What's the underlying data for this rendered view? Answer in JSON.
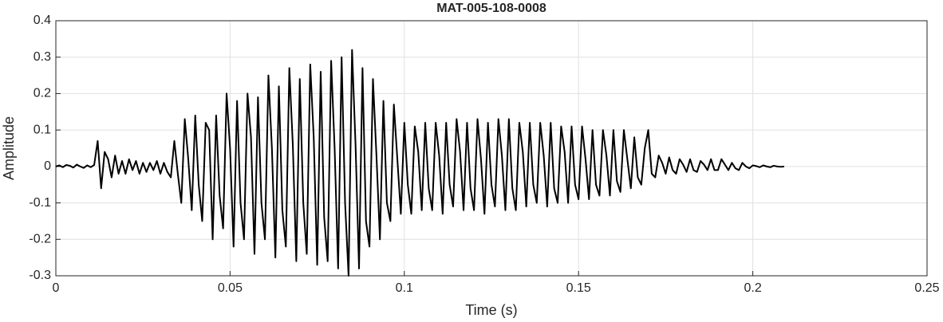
{
  "chart_data": {
    "type": "line",
    "title": "MAT-005-108-0008",
    "xlabel": "Time (s)",
    "ylabel": "Amplitude",
    "color": "#000000",
    "grid": true,
    "xlim": [
      0,
      0.25
    ],
    "xticks": [
      0,
      0.05,
      0.1,
      0.15,
      0.2,
      0.25
    ],
    "ylim": [
      -0.3,
      0.4
    ],
    "yticks": [
      -0.3,
      -0.2,
      -0.1,
      0,
      0.1,
      0.2,
      0.3,
      0.4
    ],
    "x": [
      0,
      0.001,
      0.002,
      0.003,
      0.004,
      0.005,
      0.006,
      0.007,
      0.008,
      0.009,
      0.01,
      0.011,
      0.012,
      0.013,
      0.014,
      0.015,
      0.016,
      0.017,
      0.018,
      0.019,
      0.02,
      0.021,
      0.022,
      0.023,
      0.024,
      0.025,
      0.026,
      0.027,
      0.028,
      0.029,
      0.03,
      0.031,
      0.032,
      0.033,
      0.034,
      0.035,
      0.036,
      0.037,
      0.038,
      0.039,
      0.04,
      0.041,
      0.042,
      0.043,
      0.044,
      0.045,
      0.046,
      0.047,
      0.048,
      0.049,
      0.05,
      0.051,
      0.052,
      0.053,
      0.054,
      0.055,
      0.056,
      0.057,
      0.058,
      0.059,
      0.06,
      0.061,
      0.062,
      0.063,
      0.064,
      0.065,
      0.066,
      0.067,
      0.068,
      0.069,
      0.07,
      0.071,
      0.072,
      0.073,
      0.074,
      0.075,
      0.076,
      0.077,
      0.078,
      0.079,
      0.08,
      0.081,
      0.082,
      0.083,
      0.084,
      0.085,
      0.086,
      0.087,
      0.088,
      0.089,
      0.09,
      0.091,
      0.092,
      0.093,
      0.094,
      0.095,
      0.096,
      0.097,
      0.098,
      0.099,
      0.1,
      0.101,
      0.102,
      0.103,
      0.104,
      0.105,
      0.106,
      0.107,
      0.108,
      0.109,
      0.11,
      0.111,
      0.112,
      0.113,
      0.114,
      0.115,
      0.116,
      0.117,
      0.118,
      0.119,
      0.12,
      0.121,
      0.122,
      0.123,
      0.124,
      0.125,
      0.126,
      0.127,
      0.128,
      0.129,
      0.13,
      0.131,
      0.132,
      0.133,
      0.134,
      0.135,
      0.136,
      0.137,
      0.138,
      0.139,
      0.14,
      0.141,
      0.142,
      0.143,
      0.144,
      0.145,
      0.146,
      0.147,
      0.148,
      0.149,
      0.15,
      0.151,
      0.152,
      0.153,
      0.154,
      0.155,
      0.156,
      0.157,
      0.158,
      0.159,
      0.16,
      0.161,
      0.162,
      0.163,
      0.164,
      0.165,
      0.166,
      0.167,
      0.168,
      0.169,
      0.17,
      0.171,
      0.172,
      0.173,
      0.174,
      0.175,
      0.176,
      0.177,
      0.178,
      0.179,
      0.18,
      0.181,
      0.182,
      0.183,
      0.184,
      0.185,
      0.186,
      0.187,
      0.188,
      0.189,
      0.19,
      0.191,
      0.192,
      0.193,
      0.194,
      0.195,
      0.196,
      0.197,
      0.198,
      0.199,
      0.2,
      0.201,
      0.202,
      0.203,
      0.204,
      0.205,
      0.206,
      0.207,
      0.208,
      0.209
    ],
    "values": [
      0,
      0.003,
      -0.002,
      0.004,
      0.002,
      -0.003,
      0.005,
      0,
      -0.004,
      0.003,
      -0.002,
      0.004,
      0.07,
      -0.06,
      0.04,
      0.02,
      -0.03,
      0.03,
      -0.02,
      0.015,
      -0.02,
      0.02,
      -0.01,
      0.015,
      -0.02,
      0.01,
      -0.015,
      0.01,
      -0.01,
      0.015,
      -0.02,
      0.01,
      -0.015,
      -0.03,
      0.07,
      -0.02,
      -0.1,
      0.13,
      0.02,
      -0.12,
      0.14,
      -0.05,
      -0.15,
      0.12,
      0.1,
      -0.2,
      0.14,
      -0.08,
      -0.17,
      0.2,
      0.05,
      -0.22,
      0.18,
      -0.1,
      -0.2,
      0.2,
      0.08,
      -0.24,
      0.19,
      -0.1,
      -0.2,
      0.25,
      0.05,
      -0.25,
      0.22,
      -0.12,
      -0.22,
      0.27,
      0.06,
      -0.26,
      0.24,
      -0.1,
      -0.24,
      0.28,
      0.08,
      -0.27,
      0.26,
      -0.14,
      -0.26,
      0.29,
      0.05,
      -0.28,
      0.3,
      -0.1,
      -0.3,
      0.32,
      0.06,
      -0.28,
      0.27,
      -0.15,
      -0.22,
      0.24,
      0.03,
      -0.2,
      0.18,
      -0.1,
      -0.15,
      0.17,
      0.02,
      -0.13,
      0.12,
      -0.05,
      -0.13,
      0.11,
      0.04,
      -0.12,
      0.12,
      -0.06,
      -0.12,
      0.12,
      0.03,
      -0.13,
      0.12,
      -0.05,
      -0.11,
      0.13,
      0.04,
      -0.12,
      0.12,
      -0.06,
      -0.12,
      0.13,
      0.02,
      -0.13,
      0.12,
      -0.05,
      -0.11,
      0.13,
      0.03,
      -0.12,
      0.13,
      -0.06,
      -0.12,
      0.12,
      0.04,
      -0.11,
      0.12,
      -0.05,
      -0.1,
      0.12,
      0.03,
      -0.11,
      0.12,
      -0.06,
      -0.1,
      0.11,
      0.04,
      -0.1,
      0.11,
      -0.05,
      -0.09,
      0.11,
      0.02,
      -0.09,
      0.1,
      -0.05,
      -0.08,
      0.1,
      0.03,
      -0.08,
      0.1,
      -0.04,
      -0.07,
      0.1,
      0.02,
      -0.06,
      0.08,
      -0.03,
      -0.05,
      0.05,
      0.1,
      -0.02,
      -0.03,
      0.03,
      0.01,
      -0.02,
      0.025,
      -0.01,
      -0.02,
      0.02,
      0.005,
      -0.015,
      0.02,
      -0.01,
      -0.015,
      0.015,
      0.005,
      -0.01,
      0.02,
      -0.01,
      -0.01,
      0.02,
      0.005,
      -0.01,
      0.01,
      -0.005,
      -0.01,
      0.01,
      0,
      -0.005,
      0.003,
      0.001,
      -0.002,
      0.003,
      0,
      -0.002,
      0.002,
      0,
      -0.001,
      0
    ]
  }
}
